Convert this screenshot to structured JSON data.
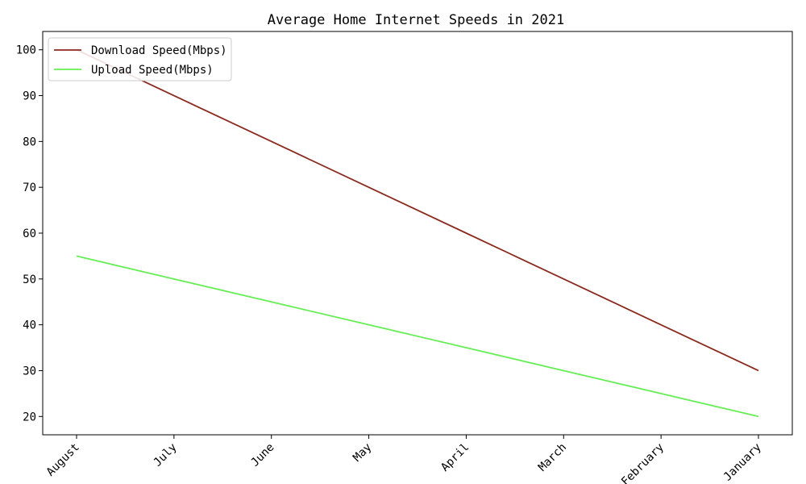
{
  "chart_data": {
    "type": "line",
    "title": "Average Home Internet Speeds in 2021",
    "xlabel": "",
    "ylabel": "",
    "categories": [
      "August",
      "July",
      "June",
      "May",
      "April",
      "March",
      "February",
      "January"
    ],
    "yticks": [
      20,
      30,
      40,
      50,
      60,
      70,
      80,
      90,
      100
    ],
    "ylim": [
      16,
      104
    ],
    "grid": false,
    "legend_position": "top-left",
    "series": [
      {
        "name": "Download Speed(Mbps)",
        "color": "#8b2a1e",
        "values": [
          100,
          90,
          80,
          70,
          60,
          50,
          40,
          30
        ]
      },
      {
        "name": "Upload Speed(Mbps)",
        "color": "#66ee55",
        "values": [
          55,
          50,
          45,
          40,
          35,
          30,
          25,
          20
        ]
      }
    ]
  }
}
